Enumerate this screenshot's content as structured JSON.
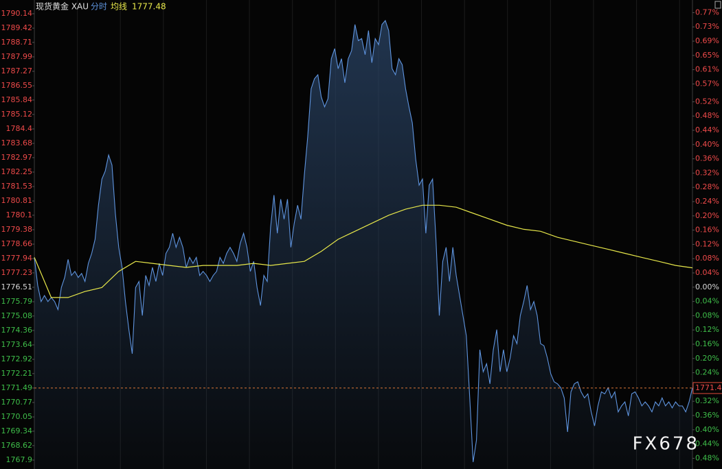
{
  "chart_data": {
    "type": "line",
    "title": "现货黄金 XAU",
    "series": [
      {
        "name": "分时",
        "color": "#5f95e0",
        "values": [
          1778.0,
          1776.6,
          1775.8,
          1776.1,
          1775.8,
          1776.0,
          1775.8,
          1775.4,
          1776.5,
          1777.0,
          1777.9,
          1777.1,
          1777.3,
          1777.0,
          1777.2,
          1776.8,
          1777.7,
          1778.2,
          1778.9,
          1780.6,
          1781.9,
          1782.3,
          1783.1,
          1782.6,
          1780.2,
          1778.5,
          1777.5,
          1775.8,
          1774.4,
          1773.2,
          1776.5,
          1776.8,
          1775.1,
          1777.1,
          1776.6,
          1777.5,
          1776.8,
          1777.7,
          1777.1,
          1778.2,
          1778.5,
          1779.2,
          1778.5,
          1779.0,
          1778.5,
          1777.5,
          1778.0,
          1777.7,
          1778.0,
          1777.1,
          1777.3,
          1777.1,
          1776.8,
          1777.1,
          1777.3,
          1778.0,
          1777.7,
          1778.2,
          1778.5,
          1778.2,
          1777.8,
          1778.7,
          1779.2,
          1778.5,
          1777.3,
          1777.8,
          1776.5,
          1775.6,
          1777.1,
          1776.8,
          1779.5,
          1781.1,
          1779.2,
          1780.9,
          1779.9,
          1780.9,
          1778.5,
          1779.7,
          1780.6,
          1779.9,
          1782.1,
          1784.0,
          1786.4,
          1786.9,
          1787.1,
          1786.0,
          1785.5,
          1785.9,
          1787.9,
          1788.4,
          1787.4,
          1787.9,
          1786.7,
          1787.9,
          1788.3,
          1789.6,
          1788.8,
          1788.9,
          1788.1,
          1789.3,
          1787.7,
          1788.9,
          1788.6,
          1789.6,
          1789.8,
          1789.3,
          1787.4,
          1787.1,
          1787.9,
          1787.6,
          1786.4,
          1785.5,
          1784.7,
          1782.9,
          1781.6,
          1781.9,
          1779.2,
          1781.6,
          1781.9,
          1778.9,
          1775.1,
          1777.8,
          1778.5,
          1776.8,
          1778.5,
          1777.1,
          1776.1,
          1775.1,
          1774.1,
          1771.0,
          1767.8,
          1768.9,
          1773.4,
          1772.3,
          1772.7,
          1771.7,
          1773.4,
          1774.4,
          1772.3,
          1773.4,
          1772.3,
          1773.0,
          1774.1,
          1773.7,
          1775.1,
          1775.8,
          1776.6,
          1775.4,
          1775.8,
          1775.1,
          1773.7,
          1773.6,
          1773.0,
          1772.2,
          1771.8,
          1771.7,
          1771.5,
          1771.0,
          1769.3,
          1771.3,
          1771.7,
          1771.8,
          1771.3,
          1771.0,
          1771.2,
          1770.3,
          1769.6,
          1770.6,
          1771.3,
          1771.2,
          1771.5,
          1771.0,
          1771.3,
          1770.3,
          1770.6,
          1770.8,
          1770.1,
          1771.2,
          1771.3,
          1771.0,
          1770.6,
          1770.8,
          1770.6,
          1770.3,
          1770.8,
          1770.6,
          1771.0,
          1770.6,
          1770.8,
          1770.5,
          1770.8,
          1770.6,
          1770.6,
          1770.3,
          1770.8,
          1771.5
        ]
      },
      {
        "name": "均线",
        "color": "#e8e84a",
        "values": [
          1778.0,
          1776.0,
          1776.0,
          1776.3,
          1776.5,
          1777.3,
          1777.8,
          1777.7,
          1777.6,
          1777.5,
          1777.6,
          1777.6,
          1777.6,
          1777.7,
          1777.6,
          1777.7,
          1777.8,
          1778.3,
          1778.9,
          1779.3,
          1779.7,
          1780.1,
          1780.4,
          1780.6,
          1780.6,
          1780.5,
          1780.2,
          1779.9,
          1779.6,
          1779.4,
          1779.3,
          1779.0,
          1778.8,
          1778.6,
          1778.4,
          1778.2,
          1778.0,
          1777.8,
          1777.6,
          1777.48
        ]
      }
    ],
    "last_price": 1771.49,
    "ylim": [
      1767.9,
      1790.14
    ],
    "yticks": [
      1790.14,
      1789.42,
      1788.71,
      1787.99,
      1787.27,
      1786.55,
      1785.84,
      1785.12,
      1784.4,
      1783.68,
      1782.97,
      1782.25,
      1781.53,
      1780.81,
      1780.1,
      1779.38,
      1778.66,
      1777.94,
      1777.23,
      1776.51,
      1775.79,
      1775.08,
      1774.36,
      1773.64,
      1772.92,
      1772.21,
      1771.49,
      1770.77,
      1770.05,
      1769.34,
      1768.62,
      1767.9
    ],
    "y2lim": [
      -0.485,
      0.767
    ],
    "y2ticks": [
      {
        "value": 0.77,
        "label": "0.77%"
      },
      {
        "value": 0.73,
        "label": "0.73%"
      },
      {
        "value": 0.69,
        "label": "0.69%"
      },
      {
        "value": 0.65,
        "label": "0.65%"
      },
      {
        "value": 0.61,
        "label": "0.61%"
      },
      {
        "value": 0.57,
        "label": "0.57%"
      },
      {
        "value": 0.52,
        "label": "0.52%"
      },
      {
        "value": 0.48,
        "label": "0.48%"
      },
      {
        "value": 0.44,
        "label": "0.44%"
      },
      {
        "value": 0.4,
        "label": "0.40%"
      },
      {
        "value": 0.36,
        "label": "0.36%"
      },
      {
        "value": 0.32,
        "label": "0.32%"
      },
      {
        "value": 0.28,
        "label": "0.28%"
      },
      {
        "value": 0.24,
        "label": "0.24%"
      },
      {
        "value": 0.2,
        "label": "0.20%"
      },
      {
        "value": 0.16,
        "label": "0.16%"
      },
      {
        "value": 0.12,
        "label": "0.12%"
      },
      {
        "value": 0.08,
        "label": "0.08%"
      },
      {
        "value": 0.04,
        "label": "0.04%"
      },
      {
        "value": 0,
        "label": "0.00%"
      },
      {
        "value": -0.04,
        "label": "0.04%"
      },
      {
        "value": -0.08,
        "label": "0.08%"
      },
      {
        "value": -0.12,
        "label": "0.12%"
      },
      {
        "value": -0.16,
        "label": "0.16%"
      },
      {
        "value": -0.2,
        "label": "0.20%"
      },
      {
        "value": -0.24,
        "label": "0.24%"
      },
      {
        "value": -0.28,
        "label": "0.28%"
      },
      {
        "value": -0.32,
        "label": "0.32%"
      },
      {
        "value": -0.36,
        "label": "0.36%"
      },
      {
        "value": -0.4,
        "label": "0.40%"
      },
      {
        "value": -0.44,
        "label": "0.44%"
      },
      {
        "value": -0.48,
        "label": "0.48%"
      }
    ],
    "watermark": "FX678"
  }
}
